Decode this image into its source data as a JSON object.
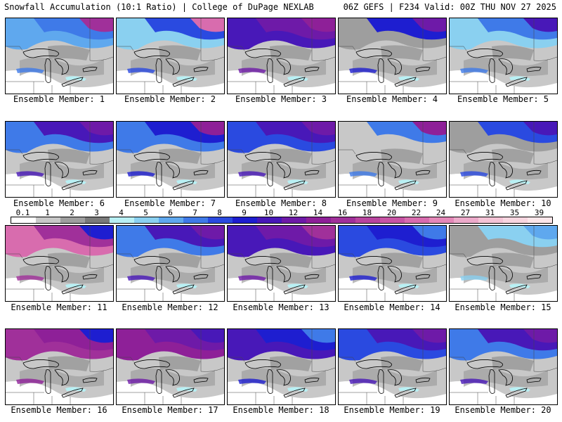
{
  "header": {
    "title": "Snowfall Accumulation (10:1 Ratio) | College of DuPage NEXLAB",
    "run_info": "06Z GEFS | F234 Valid: 00Z THU NOV 27 2025"
  },
  "colorbar": {
    "labels": [
      "0.1",
      "1",
      "2",
      "3",
      "4",
      "5",
      "6",
      "7",
      "8",
      "9",
      "10",
      "12",
      "14",
      "16",
      "18",
      "20",
      "22",
      "24",
      "27",
      "31",
      "35",
      "39"
    ],
    "colors": [
      "#ffffff",
      "#c8c8c8",
      "#9e9e9e",
      "#7a7a7a",
      "#b8f0f4",
      "#8ad0f0",
      "#5fa8ee",
      "#3f7ae8",
      "#2a4ae0",
      "#1e1ed0",
      "#4818b8",
      "#6e1aa8",
      "#8e2098",
      "#a0309a",
      "#b8449e",
      "#c854a4",
      "#d86cae",
      "#e488b8",
      "#ecaaca",
      "#f4c4d6",
      "#f8d6e0",
      "#fce6ea"
    ]
  },
  "panels": [
    {
      "caption": "Ensemble Member: 1"
    },
    {
      "caption": "Ensemble Member: 2"
    },
    {
      "caption": "Ensemble Member: 3"
    },
    {
      "caption": "Ensemble Member: 4"
    },
    {
      "caption": "Ensemble Member: 5"
    },
    {
      "caption": "Ensemble Member: 6"
    },
    {
      "caption": "Ensemble Member: 7"
    },
    {
      "caption": "Ensemble Member: 8"
    },
    {
      "caption": "Ensemble Member: 9"
    },
    {
      "caption": "Ensemble Member: 10"
    },
    {
      "caption": "Ensemble Member: 11"
    },
    {
      "caption": "Ensemble Member: 12"
    },
    {
      "caption": "Ensemble Member: 13"
    },
    {
      "caption": "Ensemble Member: 14"
    },
    {
      "caption": "Ensemble Member: 15"
    },
    {
      "caption": "Ensemble Member: 16"
    },
    {
      "caption": "Ensemble Member: 17"
    },
    {
      "caption": "Ensemble Member: 18"
    },
    {
      "caption": "Ensemble Member: 19"
    },
    {
      "caption": "Ensemble Member: 20"
    }
  ],
  "colors": {
    "no_snow": "#ffffff",
    "light_gray": "#c8c8c8",
    "mid_gray": "#9e9e9e",
    "dark_gray": "#7a7a7a",
    "light_cyan": "#b8f0f4",
    "light_blue": "#8ad0f0",
    "blue": "#5fa8ee",
    "royal_blue": "#3f7ae8",
    "deep_blue": "#2a4ae0",
    "navy_blue": "#1e1ed0",
    "indigo": "#4818b8",
    "purple": "#6e1aa8",
    "violet": "#8e2098",
    "magenta": "#a0309a",
    "pink": "#d86cae"
  }
}
